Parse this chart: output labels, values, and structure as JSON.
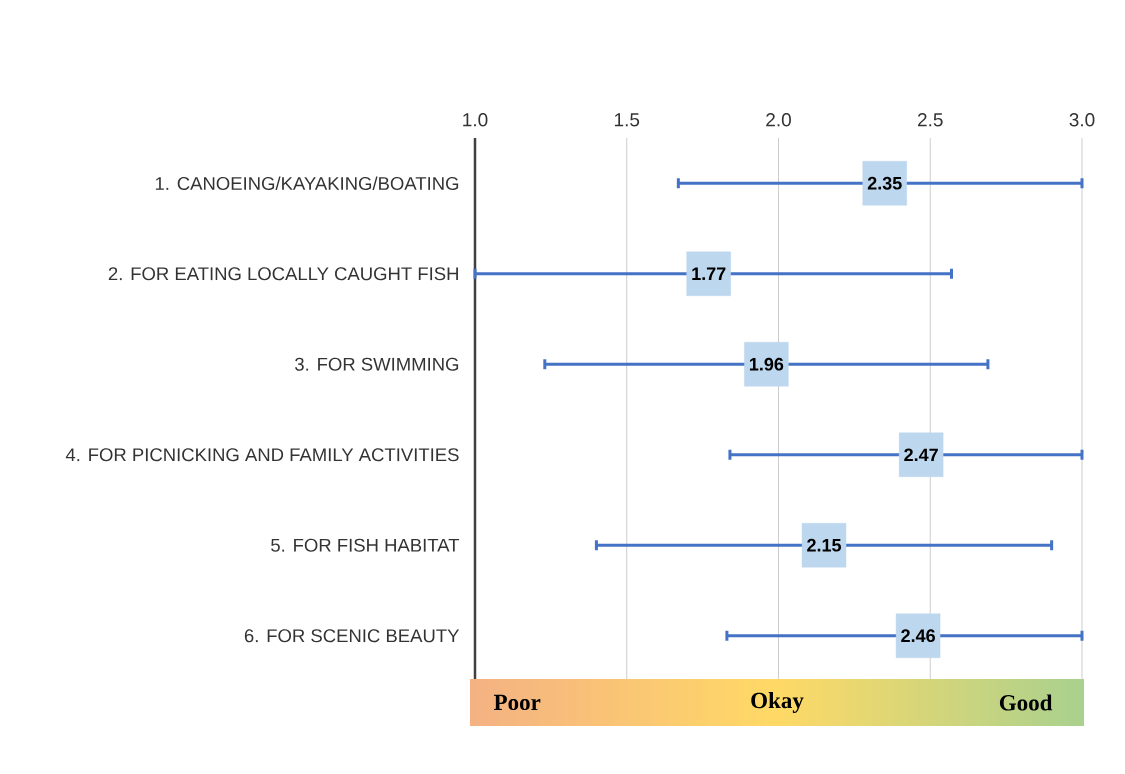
{
  "chart_data": {
    "type": "scatter",
    "orientation": "horizontal",
    "marker": "square",
    "colors": [
      "#bdd7ee",
      "#bdd7ee",
      "#bdd7ee",
      "#bdd7ee",
      "#bdd7ee",
      "#bdd7ee"
    ],
    "data_labels": true,
    "grid": "x",
    "color": "#4472c4",
    "categories": [
      "1. CANOEING/KAYAKING/BOATING",
      "2. FOR EATING LOCALLY CAUGHT FISH",
      "3. FOR SWIMMING",
      "4. FOR PICNICKING AND FAMILY ACTIVITIES",
      "5. FOR FISH HABITAT",
      "6. FOR SCENIC BEAUTY"
    ],
    "values": [
      2.35,
      1.77,
      1.96,
      2.47,
      2.15,
      2.46
    ],
    "errors": [
      [
        1.67,
        3.0
      ],
      [
        1.0,
        2.57
      ],
      [
        1.23,
        2.69
      ],
      [
        1.84,
        3.0
      ],
      [
        1.4,
        2.9
      ],
      [
        1.83,
        3.0
      ]
    ],
    "xlim": [
      1.0,
      3.0
    ],
    "xticks": [
      {
        "value": 1.0,
        "label": "1.0"
      },
      {
        "value": 1.5,
        "label": "1.5"
      },
      {
        "value": 2.0,
        "label": "2.0"
      },
      {
        "value": 2.5,
        "label": "2.5"
      },
      {
        "value": 3.0,
        "label": "3.0"
      }
    ],
    "annotations": [
      "Poor",
      "Okay",
      "Good"
    ]
  }
}
